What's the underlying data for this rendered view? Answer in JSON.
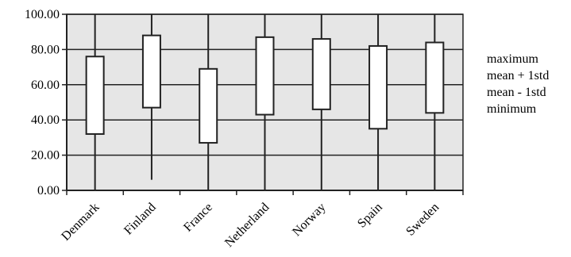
{
  "chart_data": {
    "type": "box",
    "categories": [
      "Denmark",
      "Finland",
      "France",
      "Netherland",
      "Norway",
      "Spain",
      "Sweden"
    ],
    "series": [
      {
        "name": "maximum",
        "values": [
          100,
          100,
          100,
          100,
          100,
          100,
          100
        ]
      },
      {
        "name": "mean + 1std",
        "values": [
          76,
          88,
          69,
          87,
          86,
          82,
          84
        ]
      },
      {
        "name": "mean - 1std",
        "values": [
          32,
          47,
          27,
          43,
          46,
          35,
          44
        ]
      },
      {
        "name": "minimum",
        "values": [
          0,
          6,
          0,
          0,
          0,
          0,
          0
        ]
      }
    ],
    "ylim": [
      0,
      100
    ],
    "yticks": [
      "0.00",
      "20.00",
      "40.00",
      "60.00",
      "80.00",
      "100.00"
    ],
    "grid": true,
    "legend_position": "right",
    "colors": {
      "plot_bg": "#e6e6e6",
      "box_fill": "#ffffff",
      "line": "#222222"
    }
  }
}
